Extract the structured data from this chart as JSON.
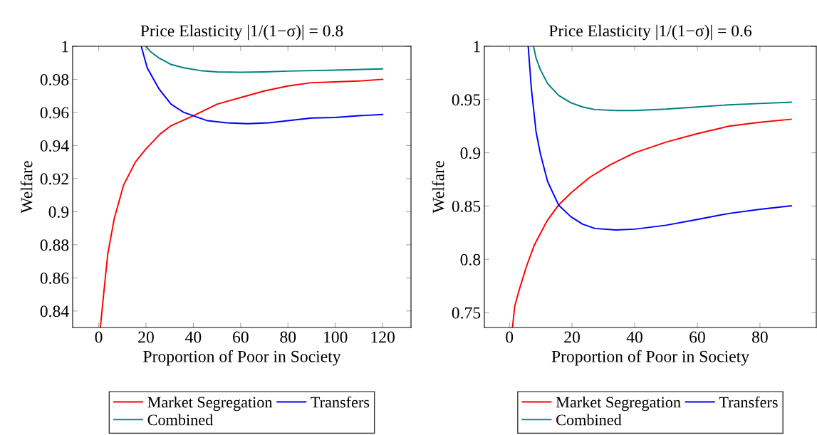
{
  "chart_data": [
    {
      "type": "line",
      "title": "Price Elasticity |1/(1−σ)| = 0.8",
      "xlabel": "Proportion of Poor in Society",
      "ylabel": "Welfare",
      "xlim": [
        -11,
        132
      ],
      "ylim": [
        0.83,
        1
      ],
      "xticks": [
        0,
        20,
        40,
        60,
        80,
        100,
        120
      ],
      "yticks": [
        0.84,
        0.86,
        0.88,
        0.9,
        0.92,
        0.94,
        0.96,
        0.98,
        1
      ],
      "grid": false,
      "legend": "bottom",
      "marker": "none",
      "line_style": "solid",
      "series": [
        {
          "name": "Market Segregation",
          "color": "#ff0000",
          "x": [
            0.7,
            2.3,
            3.8,
            6.6,
            10.5,
            15.5,
            20,
            26,
            30.6,
            40,
            50,
            60,
            70,
            80,
            90,
            100,
            110,
            120
          ],
          "values": [
            0.83,
            0.853,
            0.874,
            0.896,
            0.916,
            0.93,
            0.938,
            0.947,
            0.952,
            0.958,
            0.965,
            0.969,
            0.973,
            0.976,
            0.978,
            0.9785,
            0.979,
            0.98
          ]
        },
        {
          "name": "Combined",
          "color": "#008080",
          "x": [
            20,
            21.7,
            25.6,
            30.6,
            36,
            43,
            50,
            60,
            70,
            80,
            100,
            120
          ],
          "values": [
            1.0,
            0.997,
            0.9928,
            0.989,
            0.987,
            0.9853,
            0.9845,
            0.9843,
            0.9845,
            0.985,
            0.9856,
            0.9863
          ]
        },
        {
          "name": "Transfers",
          "color": "#0000ff",
          "x": [
            18,
            20.5,
            25.6,
            30.6,
            36,
            40,
            46,
            54,
            63,
            72,
            80,
            90,
            100,
            110,
            120
          ],
          "values": [
            1.0,
            0.987,
            0.974,
            0.965,
            0.96,
            0.958,
            0.955,
            0.9537,
            0.9532,
            0.9537,
            0.955,
            0.9566,
            0.957,
            0.958,
            0.9588
          ]
        }
      ]
    },
    {
      "type": "line",
      "title": "Price Elasticity |1/(1−σ)| = 0.6",
      "xlabel": "Proportion of Poor in Society",
      "ylabel": "Welfare",
      "xlim": [
        -8,
        98
      ],
      "ylim": [
        0.736,
        1
      ],
      "xticks": [
        0,
        20,
        40,
        60,
        80
      ],
      "yticks": [
        0.75,
        0.8,
        0.85,
        0.9,
        0.95,
        1
      ],
      "grid": false,
      "legend": "bottom",
      "marker": "none",
      "line_style": "solid",
      "series": [
        {
          "name": "Market Segregation",
          "color": "#ff0000",
          "x": [
            1.0,
            1.7,
            3.1,
            5.4,
            7.9,
            12,
            15.7,
            19.9,
            25.7,
            32.3,
            40,
            50,
            60,
            70,
            80,
            90
          ],
          "values": [
            0.7365,
            0.756,
            0.771,
            0.793,
            0.813,
            0.836,
            0.851,
            0.863,
            0.877,
            0.889,
            0.9,
            0.91,
            0.918,
            0.925,
            0.9286,
            0.9315
          ]
        },
        {
          "name": "Combined",
          "color": "#008080",
          "x": [
            7.7,
            8.5,
            9.9,
            12.2,
            15.7,
            19.6,
            23.4,
            27.3,
            34,
            40,
            50,
            60,
            70,
            80,
            90
          ],
          "values": [
            1.0,
            0.989,
            0.978,
            0.965,
            0.954,
            0.947,
            0.943,
            0.9406,
            0.9397,
            0.9397,
            0.941,
            0.943,
            0.945,
            0.9463,
            0.9475
          ]
        },
        {
          "name": "Transfers",
          "color": "#0000ff",
          "x": [
            6,
            7,
            8.5,
            9.9,
            12.2,
            15.7,
            19.6,
            23.4,
            27.3,
            34,
            40,
            50,
            60,
            70,
            80,
            90
          ],
          "values": [
            1.0,
            0.9606,
            0.92,
            0.899,
            0.873,
            0.851,
            0.84,
            0.833,
            0.829,
            0.8276,
            0.8283,
            0.832,
            0.8374,
            0.843,
            0.847,
            0.8502
          ]
        }
      ]
    }
  ]
}
